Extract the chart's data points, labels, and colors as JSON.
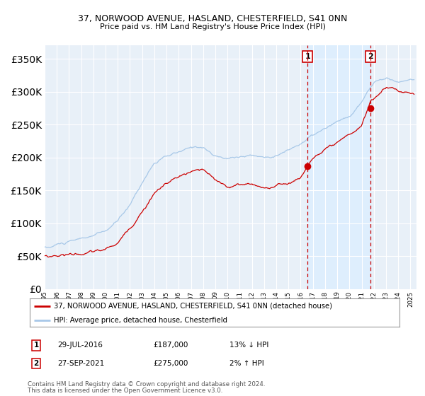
{
  "title1": "37, NORWOOD AVENUE, HASLAND, CHESTERFIELD, S41 0NN",
  "title2": "Price paid vs. HM Land Registry's House Price Index (HPI)",
  "legend_line1": "37, NORWOOD AVENUE, HASLAND, CHESTERFIELD, S41 0NN (detached house)",
  "legend_line2": "HPI: Average price, detached house, Chesterfield",
  "annotation1_date": "29-JUL-2016",
  "annotation1_price": "£187,000",
  "annotation1_hpi": "13% ↓ HPI",
  "annotation2_date": "27-SEP-2021",
  "annotation2_price": "£275,000",
  "annotation2_hpi": "2% ↑ HPI",
  "footnote1": "Contains HM Land Registry data © Crown copyright and database right 2024.",
  "footnote2": "This data is licensed under the Open Government Licence v3.0.",
  "hpi_color": "#a8c8e8",
  "price_color": "#cc0000",
  "marker_color": "#cc0000",
  "vline_color": "#cc0000",
  "shade_color": "#ddeeff",
  "bg_color": "#e8f0f8",
  "grid_color": "#ffffff",
  "ylim": [
    0,
    370000
  ],
  "yticks": [
    0,
    50000,
    100000,
    150000,
    200000,
    250000,
    300000,
    350000
  ],
  "sale1_year": 2016.57,
  "sale1_value": 187000,
  "sale2_year": 2021.74,
  "sale2_value": 275000,
  "xlim_left": 1995,
  "xlim_right": 2025.5
}
